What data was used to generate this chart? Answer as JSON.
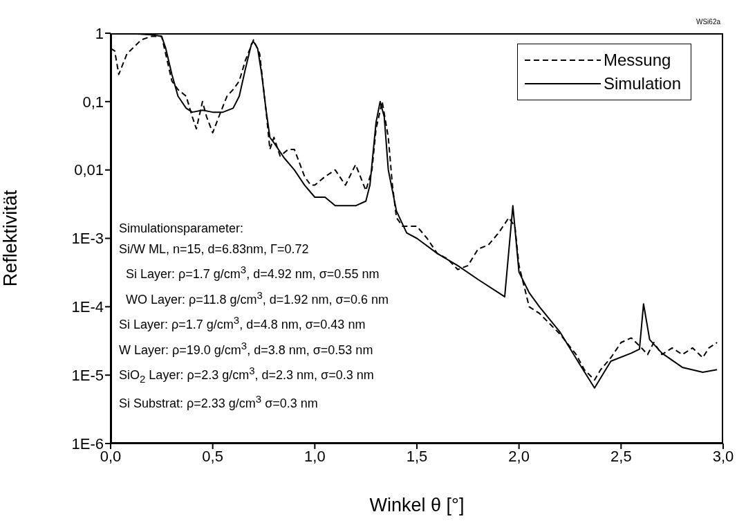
{
  "chart_data": {
    "type": "line",
    "xlabel": "Winkel θ [°]",
    "ylabel": "Reflektivität",
    "log": "y",
    "grid": false,
    "legend": "top right",
    "marker": "none",
    "xlim": [
      0,
      3
    ],
    "xticks": [
      {
        "value": 0,
        "label": "0,0"
      },
      {
        "value": 0.5,
        "label": "0,5"
      },
      {
        "value": 1,
        "label": "1,0"
      },
      {
        "value": 1.5,
        "label": "1,5"
      },
      {
        "value": 2,
        "label": "2,0"
      },
      {
        "value": 2.5,
        "label": "2,5"
      },
      {
        "value": 3,
        "label": "3,0"
      }
    ],
    "ylim": [
      1e-06,
      1
    ],
    "yticks": [
      {
        "value": 1e-06,
        "label": "1E-6"
      },
      {
        "value": 1e-05,
        "label": "1E-5"
      },
      {
        "value": 0.0001,
        "label": "1E-4"
      },
      {
        "value": 0.001,
        "label": "1E-3"
      },
      {
        "value": 0.01,
        "label": "0,01"
      },
      {
        "value": 0.1,
        "label": "0,1"
      },
      {
        "value": 1,
        "label": "1"
      }
    ],
    "series": [
      {
        "name": "Messung",
        "color": "#000000",
        "line_style": "dashed",
        "x": [
          0,
          0.02,
          0.04,
          0.08,
          0.15,
          0.2,
          0.25,
          0.3,
          0.33,
          0.37,
          0.4,
          0.42,
          0.45,
          0.47,
          0.5,
          0.53,
          0.57,
          0.6,
          0.63,
          0.66,
          0.7,
          0.73,
          0.76,
          0.78,
          0.8,
          0.83,
          0.87,
          0.9,
          0.95,
          0.98,
          1.0,
          1.05,
          1.1,
          1.15,
          1.2,
          1.25,
          1.28,
          1.3,
          1.33,
          1.36,
          1.38,
          1.4,
          1.43,
          1.5,
          1.55,
          1.6,
          1.65,
          1.7,
          1.75,
          1.8,
          1.85,
          1.9,
          1.95,
          1.98,
          2.0,
          2.05,
          2.1,
          2.2,
          2.28,
          2.32,
          2.37,
          2.4,
          2.45,
          2.5,
          2.55,
          2.6,
          2.63,
          2.66,
          2.7,
          2.75,
          2.8,
          2.85,
          2.9,
          2.93,
          2.97
        ],
        "values": [
          0.6,
          0.55,
          0.25,
          0.5,
          0.8,
          0.9,
          0.9,
          0.2,
          0.15,
          0.12,
          0.06,
          0.04,
          0.1,
          0.06,
          0.035,
          0.06,
          0.12,
          0.15,
          0.2,
          0.4,
          0.8,
          0.5,
          0.08,
          0.02,
          0.03,
          0.016,
          0.02,
          0.02,
          0.008,
          0.006,
          0.006,
          0.008,
          0.01,
          0.006,
          0.012,
          0.005,
          0.01,
          0.04,
          0.1,
          0.03,
          0.006,
          0.002,
          0.0015,
          0.0015,
          0.001,
          0.0006,
          0.0005,
          0.00035,
          0.0004,
          0.0007,
          0.0008,
          0.0012,
          0.002,
          0.0015,
          0.0004,
          0.0001,
          8e-05,
          4e-05,
          2e-05,
          1.2e-05,
          8.5e-06,
          1.2e-05,
          1.8e-05,
          3e-05,
          3.5e-05,
          2.5e-05,
          2e-05,
          3e-05,
          2e-05,
          2.5e-05,
          2e-05,
          2.5e-05,
          1.8e-05,
          2.5e-05,
          3e-05
        ]
      },
      {
        "name": "Simulation",
        "color": "#000000",
        "line_style": "solid",
        "x": [
          0,
          0.1,
          0.2,
          0.25,
          0.27,
          0.3,
          0.33,
          0.37,
          0.4,
          0.45,
          0.5,
          0.55,
          0.6,
          0.63,
          0.66,
          0.69,
          0.7,
          0.72,
          0.74,
          0.76,
          0.78,
          0.8,
          0.85,
          0.9,
          0.95,
          1.0,
          1.05,
          1.1,
          1.15,
          1.2,
          1.25,
          1.27,
          1.3,
          1.32,
          1.34,
          1.36,
          1.38,
          1.4,
          1.45,
          1.5,
          1.6,
          1.7,
          1.8,
          1.9,
          1.93,
          1.97,
          2.0,
          2.05,
          2.1,
          2.2,
          2.3,
          2.37,
          2.45,
          2.55,
          2.59,
          2.61,
          2.64,
          2.7,
          2.8,
          2.9,
          2.97
        ],
        "values": [
          1.0,
          0.99,
          0.95,
          0.9,
          0.6,
          0.25,
          0.12,
          0.08,
          0.07,
          0.075,
          0.07,
          0.07,
          0.08,
          0.12,
          0.3,
          0.7,
          0.75,
          0.6,
          0.25,
          0.08,
          0.03,
          0.025,
          0.015,
          0.01,
          0.006,
          0.004,
          0.004,
          0.003,
          0.003,
          0.003,
          0.0035,
          0.006,
          0.05,
          0.1,
          0.06,
          0.01,
          0.005,
          0.0025,
          0.0012,
          0.001,
          0.0006,
          0.0004,
          0.00025,
          0.00016,
          0.00014,
          0.003,
          0.00032,
          0.00016,
          0.0001,
          4.3e-05,
          1.4e-05,
          6.5e-06,
          1.6e-05,
          2.1e-05,
          2.4e-05,
          0.00011,
          3.3e-05,
          2.1e-05,
          1.3e-05,
          1.1e-05,
          1.2e-05
        ]
      }
    ],
    "annotations": [
      "WSi62a",
      "Simulationsparameter:",
      "Si/W ML, n=15, d=6.83nm, Γ=0.72",
      "  Si Layer: ρ=1.7 g/cm$^{3}$, d=4.92 nm, σ=0.55 nm",
      "  WO Layer: ρ=11.8 g/cm$^{3}$, d=1.92 nm, σ=0.6 nm",
      "Si Layer: ρ=1.7 g/cm$^{3}$, d=4.8 nm, σ=0.43 nm",
      "W Layer: ρ=19.0 g/cm$^{3}$, d=3.8 nm, σ=0.53 nm",
      "SiO$_{2}$ Layer: ρ=2.3 g/cm$^{3}$, d=2.3 nm, σ=0.3 nm",
      "Si Substrat: ρ=2.33 g/cm$^{3}$ σ=0.3 nm"
    ]
  }
}
